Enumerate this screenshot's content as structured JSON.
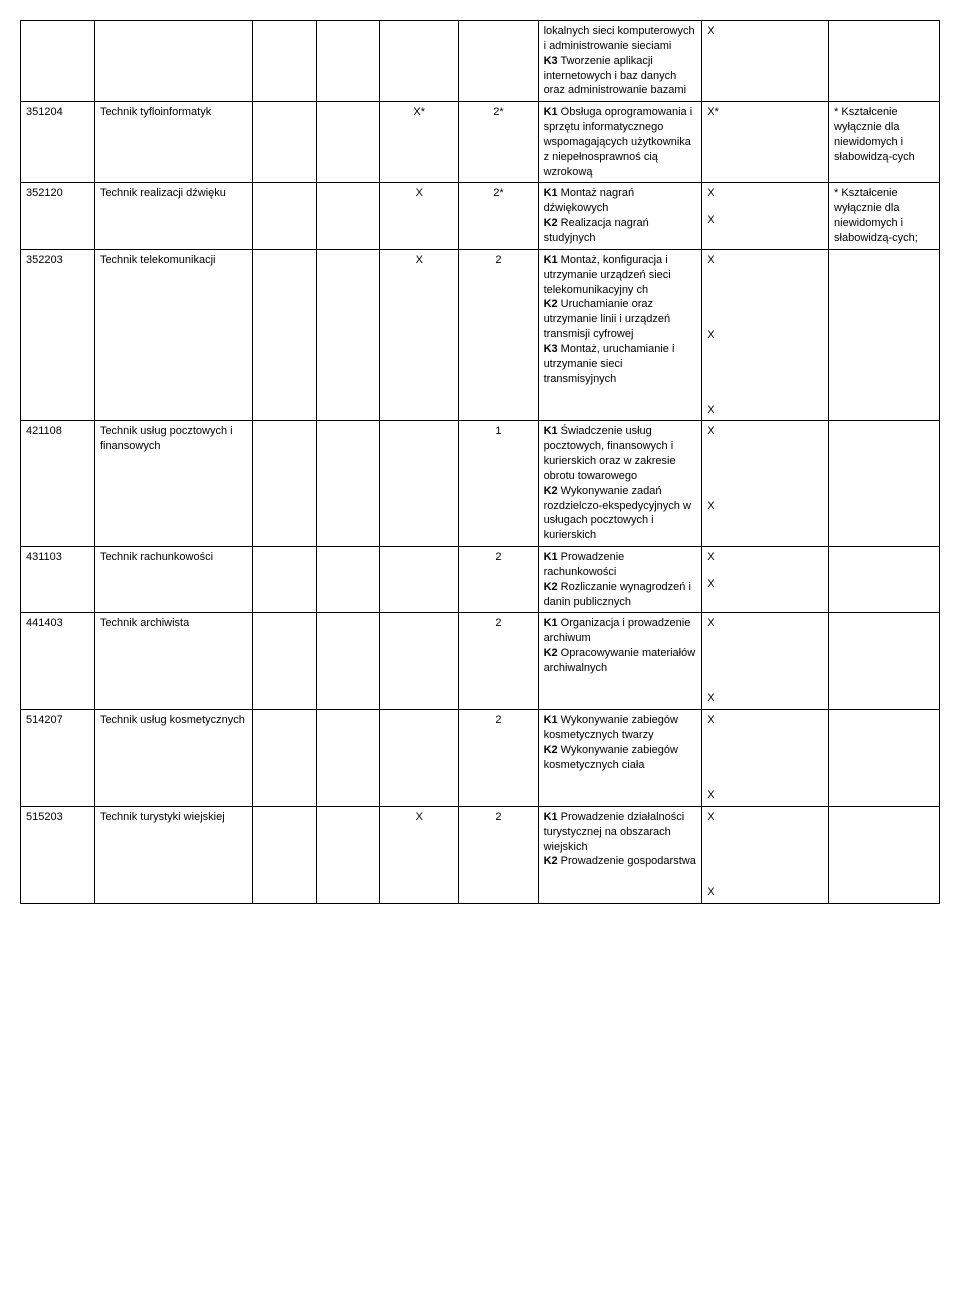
{
  "rows": [
    {
      "code": "",
      "name": "",
      "c3": "",
      "c4": "",
      "c5": "",
      "c6": "",
      "desc_parts": [
        {
          "plain": "lokalnych sieci komputerowych i administrowanie sieciami"
        },
        {
          "bold": "K3",
          "plain": " Tworzenie aplikacji internetowych i baz danych oraz administrowanie bazami"
        }
      ],
      "c8_marks": [
        "X"
      ],
      "c9": ""
    },
    {
      "code": "351204",
      "name": "Technik tyfloinformatyk",
      "c3": "",
      "c4": "",
      "c5": "X*",
      "c6": "2*",
      "desc_parts": [
        {
          "bold": "K1",
          "plain": " Obsługa oprogramowania i sprzętu informatycznego wspomagających użytkownika z niepełnosprawnoś cią wzrokową"
        }
      ],
      "c8_marks": [
        "X*"
      ],
      "c9": "* Kształcenie wyłącznie dla niewidomych i słabowidzą-cych"
    },
    {
      "code": "352120",
      "name": "Technik realizacji dźwięku",
      "c3": "",
      "c4": "",
      "c5": "X",
      "c6": "2*",
      "desc_parts": [
        {
          "bold": "K1",
          "plain": " Montaż nagrań dźwiękowych"
        },
        {
          "bold": "K2",
          "plain": " Realizacja nagrań studyjnych"
        }
      ],
      "c8_marks": [
        "X",
        "X"
      ],
      "c9": "* Kształcenie wyłącznie dla niewidomych i słabowidzą-cych;"
    },
    {
      "code": "352203",
      "name": "Technik telekomunikacji",
      "c3": "",
      "c4": "",
      "c5": "X",
      "c6": "2",
      "desc_parts": [
        {
          "bold": "K1",
          "plain": " Montaż, konfiguracja i utrzymanie urządzeń sieci telekomunikacyjny ch"
        },
        {
          "bold": "K2",
          "plain": " Uruchamianie oraz utrzymanie linii i urządzeń transmisji cyfrowej"
        },
        {
          "bold": "K3",
          "plain": " Montaż, uruchamianie i utrzymanie sieci transmisyjnych"
        }
      ],
      "c8_marks": [
        "X",
        "X",
        "X"
      ],
      "c8_big_gap": true,
      "c9": ""
    },
    {
      "code": "421108",
      "name": "Technik usług pocztowych i finansowych",
      "c3": "",
      "c4": "",
      "c5": "",
      "c6": "1",
      "desc_parts": [
        {
          "bold": "K1",
          "plain": " Świadczenie usług pocztowych, finansowych i kurierskich oraz w zakresie obrotu towarowego"
        },
        {
          "bold": "K2",
          "plain": " Wykonywanie zadań rozdzielczo-ekspedycyjnych w usługach pocztowych i kurierskich"
        }
      ],
      "c8_marks": [
        "X",
        "X"
      ],
      "c8_big_gap": true,
      "c9": ""
    },
    {
      "code": "431103",
      "name": "Technik rachunkowości",
      "c3": "",
      "c4": "",
      "c5": "",
      "c6": "2",
      "desc_parts": [
        {
          "bold": "K1",
          "plain": " Prowadzenie rachunkowości"
        },
        {
          "bold": "K2",
          "plain": " Rozliczanie wynagrodzeń i danin publicznych"
        }
      ],
      "c8_marks": [
        "X",
        "X"
      ],
      "c9": ""
    },
    {
      "code": "441403",
      "name": "Technik archiwista",
      "c3": "",
      "c4": "",
      "c5": "",
      "c6": "2",
      "desc_parts": [
        {
          "bold": "K1",
          "plain": " Organizacja i prowadzenie archiwum"
        },
        {
          "bold": "K2",
          "plain": " Opracowywanie materiałów archiwalnych"
        }
      ],
      "c8_marks": [
        "X",
        "X"
      ],
      "c8_big_gap": true,
      "c9": ""
    },
    {
      "code": "514207",
      "name": "Technik usług kosmetycznych",
      "c3": "",
      "c4": "",
      "c5": "",
      "c6": "2",
      "desc_parts": [
        {
          "bold": "K1",
          "plain": " Wykonywanie zabiegów kosmetycznych twarzy"
        },
        {
          "bold": "K2",
          "plain": " Wykonywanie zabiegów kosmetycznych ciała"
        }
      ],
      "c8_marks": [
        "X",
        "X"
      ],
      "c8_big_gap": true,
      "c9": ""
    },
    {
      "code": "515203",
      "name": "Technik turystyki wiejskiej",
      "c3": "",
      "c4": "",
      "c5": "X",
      "c6": "2",
      "desc_parts": [
        {
          "bold": "K1",
          "plain": " Prowadzenie działalności turystycznej na obszarach wiejskich"
        },
        {
          "bold": "K2",
          "plain": " Prowadzenie gospodarstwa"
        }
      ],
      "c8_marks": [
        "X",
        "X"
      ],
      "c8_big_gap": true,
      "c9": ""
    }
  ]
}
